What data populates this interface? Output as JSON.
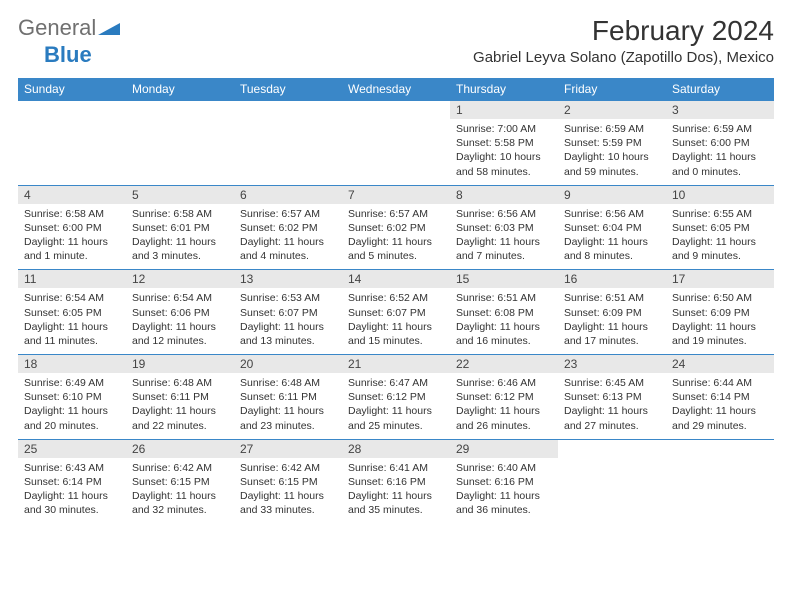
{
  "brand": {
    "part1": "General",
    "part2": "Blue"
  },
  "title": "February 2024",
  "location": "Gabriel Leyva Solano (Zapotillo Dos), Mexico",
  "colors": {
    "header_bg": "#3a87c8",
    "daynum_bg": "#e8e8e8",
    "border": "#3a87c8",
    "brand_blue": "#2a7bbf",
    "brand_gray": "#707070"
  },
  "day_headers": [
    "Sunday",
    "Monday",
    "Tuesday",
    "Wednesday",
    "Thursday",
    "Friday",
    "Saturday"
  ],
  "weeks": [
    [
      null,
      null,
      null,
      null,
      {
        "num": "1",
        "sunrise": "Sunrise: 7:00 AM",
        "sunset": "Sunset: 5:58 PM",
        "day1": "Daylight: 10 hours",
        "day2": "and 58 minutes."
      },
      {
        "num": "2",
        "sunrise": "Sunrise: 6:59 AM",
        "sunset": "Sunset: 5:59 PM",
        "day1": "Daylight: 10 hours",
        "day2": "and 59 minutes."
      },
      {
        "num": "3",
        "sunrise": "Sunrise: 6:59 AM",
        "sunset": "Sunset: 6:00 PM",
        "day1": "Daylight: 11 hours",
        "day2": "and 0 minutes."
      }
    ],
    [
      {
        "num": "4",
        "sunrise": "Sunrise: 6:58 AM",
        "sunset": "Sunset: 6:00 PM",
        "day1": "Daylight: 11 hours",
        "day2": "and 1 minute."
      },
      {
        "num": "5",
        "sunrise": "Sunrise: 6:58 AM",
        "sunset": "Sunset: 6:01 PM",
        "day1": "Daylight: 11 hours",
        "day2": "and 3 minutes."
      },
      {
        "num": "6",
        "sunrise": "Sunrise: 6:57 AM",
        "sunset": "Sunset: 6:02 PM",
        "day1": "Daylight: 11 hours",
        "day2": "and 4 minutes."
      },
      {
        "num": "7",
        "sunrise": "Sunrise: 6:57 AM",
        "sunset": "Sunset: 6:02 PM",
        "day1": "Daylight: 11 hours",
        "day2": "and 5 minutes."
      },
      {
        "num": "8",
        "sunrise": "Sunrise: 6:56 AM",
        "sunset": "Sunset: 6:03 PM",
        "day1": "Daylight: 11 hours",
        "day2": "and 7 minutes."
      },
      {
        "num": "9",
        "sunrise": "Sunrise: 6:56 AM",
        "sunset": "Sunset: 6:04 PM",
        "day1": "Daylight: 11 hours",
        "day2": "and 8 minutes."
      },
      {
        "num": "10",
        "sunrise": "Sunrise: 6:55 AM",
        "sunset": "Sunset: 6:05 PM",
        "day1": "Daylight: 11 hours",
        "day2": "and 9 minutes."
      }
    ],
    [
      {
        "num": "11",
        "sunrise": "Sunrise: 6:54 AM",
        "sunset": "Sunset: 6:05 PM",
        "day1": "Daylight: 11 hours",
        "day2": "and 11 minutes."
      },
      {
        "num": "12",
        "sunrise": "Sunrise: 6:54 AM",
        "sunset": "Sunset: 6:06 PM",
        "day1": "Daylight: 11 hours",
        "day2": "and 12 minutes."
      },
      {
        "num": "13",
        "sunrise": "Sunrise: 6:53 AM",
        "sunset": "Sunset: 6:07 PM",
        "day1": "Daylight: 11 hours",
        "day2": "and 13 minutes."
      },
      {
        "num": "14",
        "sunrise": "Sunrise: 6:52 AM",
        "sunset": "Sunset: 6:07 PM",
        "day1": "Daylight: 11 hours",
        "day2": "and 15 minutes."
      },
      {
        "num": "15",
        "sunrise": "Sunrise: 6:51 AM",
        "sunset": "Sunset: 6:08 PM",
        "day1": "Daylight: 11 hours",
        "day2": "and 16 minutes."
      },
      {
        "num": "16",
        "sunrise": "Sunrise: 6:51 AM",
        "sunset": "Sunset: 6:09 PM",
        "day1": "Daylight: 11 hours",
        "day2": "and 17 minutes."
      },
      {
        "num": "17",
        "sunrise": "Sunrise: 6:50 AM",
        "sunset": "Sunset: 6:09 PM",
        "day1": "Daylight: 11 hours",
        "day2": "and 19 minutes."
      }
    ],
    [
      {
        "num": "18",
        "sunrise": "Sunrise: 6:49 AM",
        "sunset": "Sunset: 6:10 PM",
        "day1": "Daylight: 11 hours",
        "day2": "and 20 minutes."
      },
      {
        "num": "19",
        "sunrise": "Sunrise: 6:48 AM",
        "sunset": "Sunset: 6:11 PM",
        "day1": "Daylight: 11 hours",
        "day2": "and 22 minutes."
      },
      {
        "num": "20",
        "sunrise": "Sunrise: 6:48 AM",
        "sunset": "Sunset: 6:11 PM",
        "day1": "Daylight: 11 hours",
        "day2": "and 23 minutes."
      },
      {
        "num": "21",
        "sunrise": "Sunrise: 6:47 AM",
        "sunset": "Sunset: 6:12 PM",
        "day1": "Daylight: 11 hours",
        "day2": "and 25 minutes."
      },
      {
        "num": "22",
        "sunrise": "Sunrise: 6:46 AM",
        "sunset": "Sunset: 6:12 PM",
        "day1": "Daylight: 11 hours",
        "day2": "and 26 minutes."
      },
      {
        "num": "23",
        "sunrise": "Sunrise: 6:45 AM",
        "sunset": "Sunset: 6:13 PM",
        "day1": "Daylight: 11 hours",
        "day2": "and 27 minutes."
      },
      {
        "num": "24",
        "sunrise": "Sunrise: 6:44 AM",
        "sunset": "Sunset: 6:14 PM",
        "day1": "Daylight: 11 hours",
        "day2": "and 29 minutes."
      }
    ],
    [
      {
        "num": "25",
        "sunrise": "Sunrise: 6:43 AM",
        "sunset": "Sunset: 6:14 PM",
        "day1": "Daylight: 11 hours",
        "day2": "and 30 minutes."
      },
      {
        "num": "26",
        "sunrise": "Sunrise: 6:42 AM",
        "sunset": "Sunset: 6:15 PM",
        "day1": "Daylight: 11 hours",
        "day2": "and 32 minutes."
      },
      {
        "num": "27",
        "sunrise": "Sunrise: 6:42 AM",
        "sunset": "Sunset: 6:15 PM",
        "day1": "Daylight: 11 hours",
        "day2": "and 33 minutes."
      },
      {
        "num": "28",
        "sunrise": "Sunrise: 6:41 AM",
        "sunset": "Sunset: 6:16 PM",
        "day1": "Daylight: 11 hours",
        "day2": "and 35 minutes."
      },
      {
        "num": "29",
        "sunrise": "Sunrise: 6:40 AM",
        "sunset": "Sunset: 6:16 PM",
        "day1": "Daylight: 11 hours",
        "day2": "and 36 minutes."
      },
      null,
      null
    ]
  ]
}
